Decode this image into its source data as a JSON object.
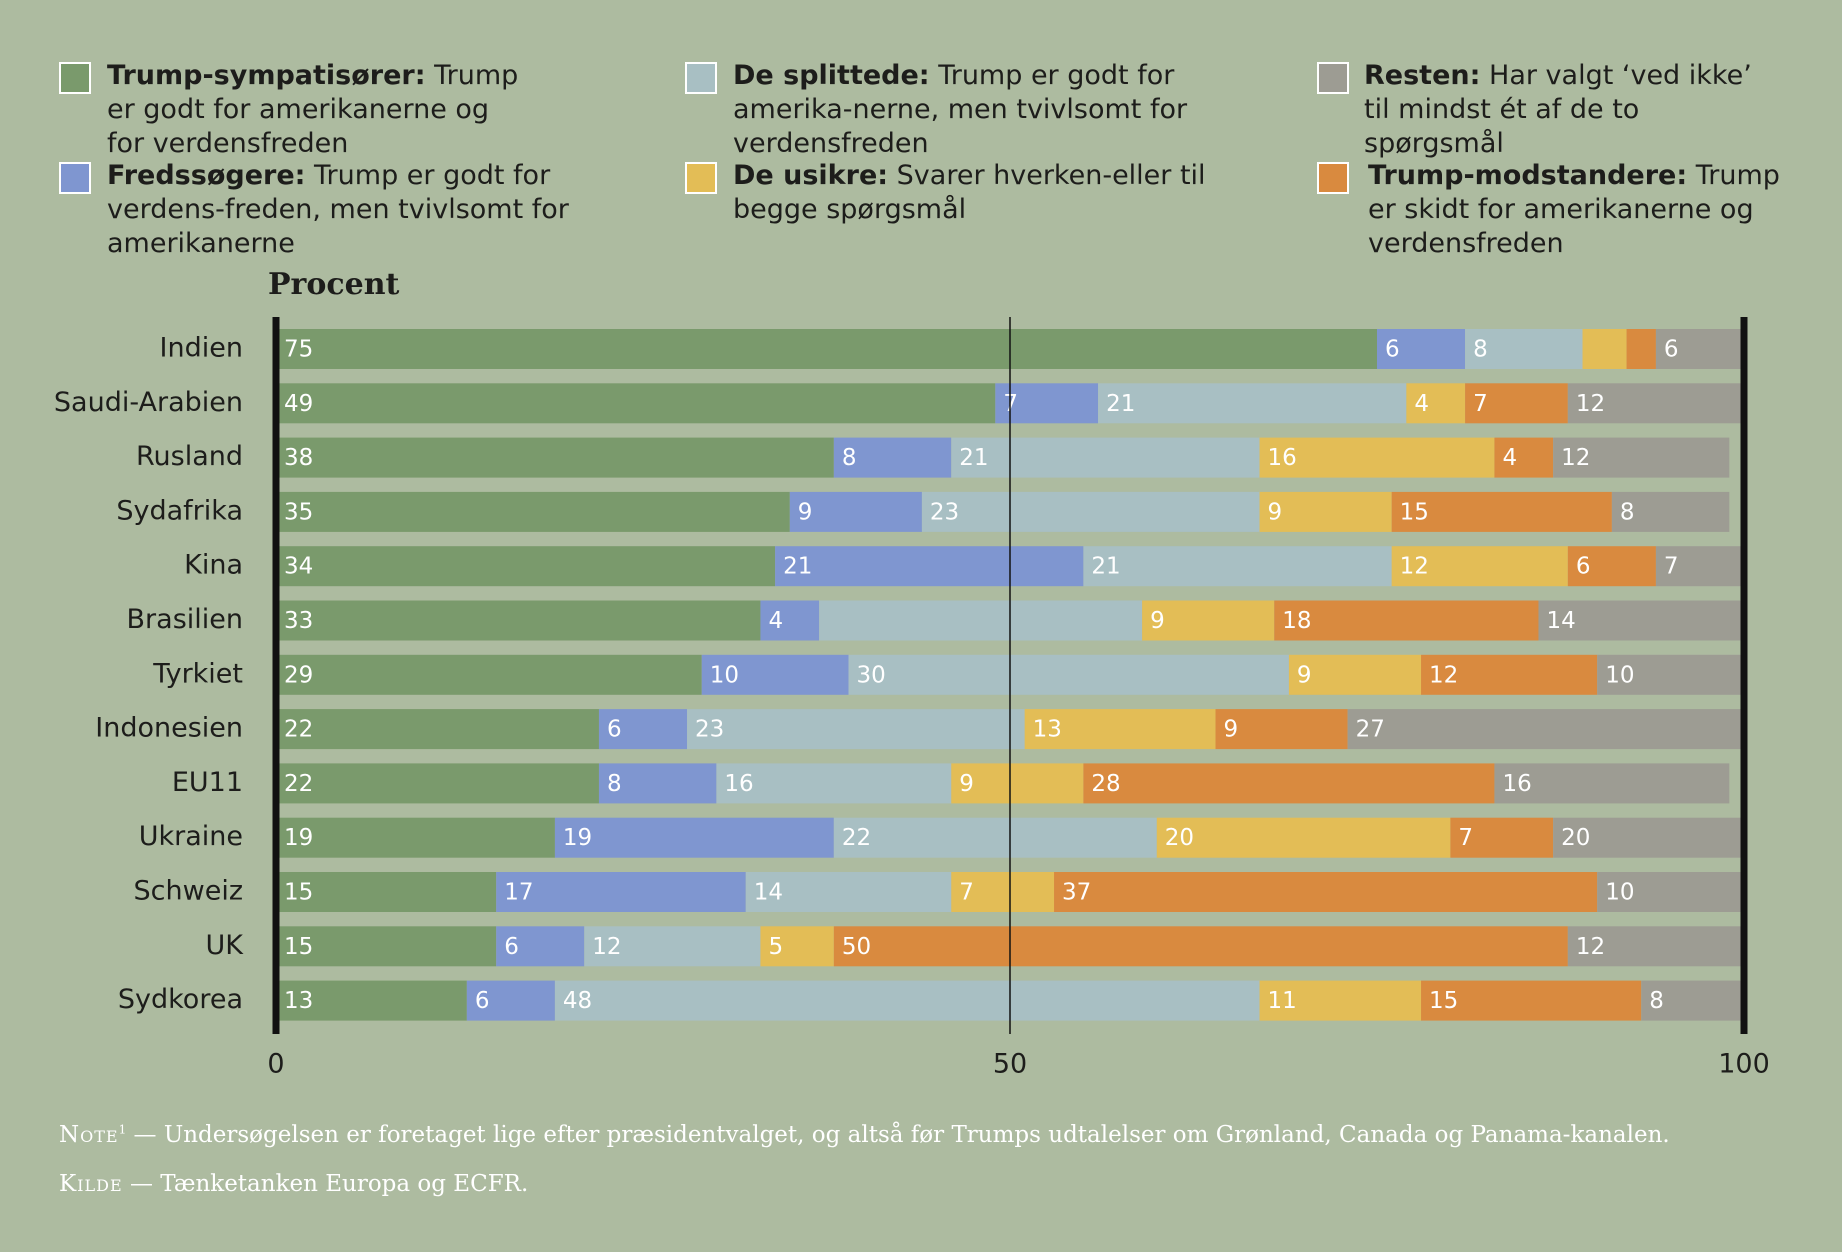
{
  "chart_data": {
    "type": "stacked_barh",
    "title": "Procent",
    "categories": [
      "Indien",
      "Saudi-Arabien",
      "Rusland",
      "Sydafrika",
      "Kina",
      "Brasilien",
      "Tyrkiet",
      "Indonesien",
      "EU11",
      "Ukraine",
      "Schweiz",
      "UK",
      "Sydkorea"
    ],
    "series": [
      {
        "name": "Trump-sympatisører:",
        "description": "Trump er godt for amerikanerne og for verdensfreden",
        "color": "#7a9a6c",
        "values": [
          75,
          49,
          38,
          35,
          34,
          33,
          29,
          22,
          22,
          19,
          15,
          15,
          13
        ],
        "value_labels": [
          75,
          49,
          38,
          35,
          34,
          33,
          29,
          22,
          22,
          19,
          15,
          15,
          13
        ]
      },
      {
        "name": "Fredssøgere:",
        "description": "Trump er godt for verdens-freden, men tvivlsomt for amerikanerne",
        "color": "#7f96d0",
        "values": [
          6,
          7,
          8,
          9,
          21,
          4,
          10,
          6,
          8,
          19,
          17,
          6,
          6
        ],
        "value_labels": [
          6,
          7,
          8,
          9,
          21,
          4,
          10,
          6,
          8,
          19,
          17,
          6,
          6
        ]
      },
      {
        "name": "De splittede:",
        "description": "Trump er godt for amerika-nerne, men tvivlsomt for verdensfreden",
        "color": "#a8bfc3",
        "values": [
          8,
          21,
          21,
          23,
          21,
          22,
          30,
          23,
          16,
          22,
          14,
          12,
          48
        ],
        "value_labels": [
          8,
          21,
          21,
          23,
          21,
          null,
          30,
          23,
          16,
          22,
          14,
          12,
          48
        ]
      },
      {
        "name": "De usikre:",
        "description": "Svarer hverken-eller til begge spørgsmål",
        "color": "#e3bd56",
        "values": [
          3,
          4,
          16,
          9,
          12,
          9,
          9,
          13,
          9,
          20,
          7,
          5,
          11
        ],
        "value_labels": [
          null,
          4,
          16,
          9,
          12,
          9,
          9,
          13,
          9,
          20,
          7,
          5,
          11
        ]
      },
      {
        "name": "Trump-modstandere:",
        "description": "Trump er skidt for amerikanerne og verdensfreden",
        "color": "#d98a3f",
        "values": [
          2,
          7,
          4,
          15,
          6,
          18,
          12,
          9,
          28,
          7,
          37,
          50,
          15
        ],
        "value_labels": [
          null,
          7,
          4,
          15,
          6,
          18,
          12,
          9,
          28,
          7,
          37,
          50,
          15
        ]
      },
      {
        "name": "Resten:",
        "description": "Har valgt ‘ved ikke’ til mindst ét af de to spørgsmål",
        "color": "#9d9c93",
        "values": [
          6,
          12,
          12,
          8,
          7,
          14,
          10,
          27,
          16,
          20,
          10,
          12,
          8
        ],
        "value_labels": [
          6,
          12,
          12,
          8,
          7,
          14,
          10,
          27,
          16,
          20,
          10,
          12,
          8
        ]
      }
    ],
    "xlim": [
      0,
      100
    ],
    "xticks": [
      0,
      50,
      100
    ],
    "note_label": "Note",
    "note_mark": "1",
    "note": "— Undersøgelsen er foretaget lige efter præsidentvalget, og altså før Trumps udtalelser om Grønland, Canada og Panama-kanalen.",
    "source_label": "Kilde",
    "source": "— Tænketanken Europa og ECFR."
  }
}
